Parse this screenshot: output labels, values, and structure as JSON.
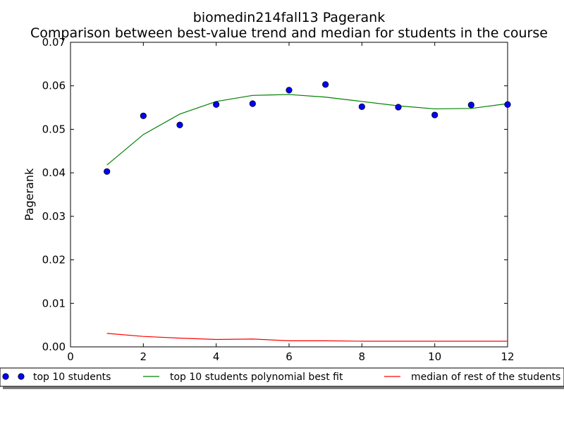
{
  "chart_data": {
    "type": "line",
    "title": "biomedin214fall13 Pagerank",
    "subtitle": "Comparison between best-value trend and median for students in the course",
    "xlabel": "",
    "ylabel": "Pagerank",
    "xlim": [
      0,
      12
    ],
    "ylim": [
      0.0,
      0.07
    ],
    "x_ticks": [
      "0",
      "2",
      "4",
      "6",
      "8",
      "10",
      "12"
    ],
    "y_ticks": [
      "0.00",
      "0.01",
      "0.02",
      "0.03",
      "0.04",
      "0.05",
      "0.06",
      "0.07"
    ],
    "grid": false,
    "legend_position": "below",
    "series": [
      {
        "name": "top 10 students",
        "kind": "scatter",
        "color": "#0000ff",
        "x": [
          1,
          2,
          3,
          4,
          5,
          6,
          7,
          8,
          9,
          10,
          11,
          12
        ],
        "y": [
          0.0403,
          0.0531,
          0.051,
          0.0557,
          0.0559,
          0.059,
          0.0603,
          0.0552,
          0.0551,
          0.0533,
          0.0556,
          0.0557
        ]
      },
      {
        "name": "top 10 students polynomial best fit",
        "kind": "line",
        "color": "#008000",
        "x": [
          1,
          2,
          3,
          4,
          5,
          6,
          7,
          8,
          9,
          10,
          11,
          12
        ],
        "y": [
          0.0418,
          0.0488,
          0.0535,
          0.0564,
          0.0578,
          0.058,
          0.0574,
          0.0564,
          0.0554,
          0.0547,
          0.0548,
          0.0559
        ]
      },
      {
        "name": "median of rest of the students",
        "kind": "line",
        "color": "#ff0000",
        "x": [
          1,
          2,
          3,
          4,
          5,
          6,
          7,
          8,
          9,
          10,
          11,
          12
        ],
        "y": [
          0.0031,
          0.0024,
          0.002,
          0.0017,
          0.0018,
          0.0014,
          0.0014,
          0.0013,
          0.0013,
          0.0013,
          0.0013,
          0.0013
        ]
      }
    ]
  }
}
